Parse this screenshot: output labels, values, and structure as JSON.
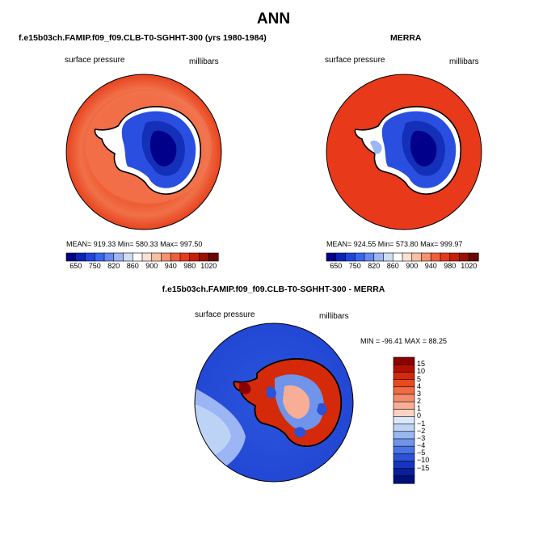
{
  "page": {
    "title": "ANN"
  },
  "panels": {
    "model": {
      "title": "f.e15b03ch.FAMIP.f09_f09.CLB-T0-SGHHT-300 (yrs 1980-1984)",
      "left_label": "surface pressure",
      "right_label": "millibars",
      "stats": "MEAN= 919.33   Min= 580.33   Max= 997.50"
    },
    "obs": {
      "title": "MERRA",
      "left_label": "surface pressure",
      "right_label": "millibars",
      "stats": "MEAN= 924.55   Min= 573.80   Max= 999.97"
    },
    "diff": {
      "title": "f.e15b03ch.FAMIP.f09_f09.CLB-T0-SGHHT-300 - MERRA",
      "left_label": "surface pressure",
      "right_label": "millibars",
      "stats": "MIN = -96.41  MAX =  88.25"
    }
  },
  "chart_data": [
    {
      "type": "heatmap",
      "title": "f.e15b03ch.FAMIP.f09_f09.CLB-T0-SGHHT-300 (yrs 1980-1984)",
      "variable": "surface pressure",
      "units": "millibars",
      "projection": "south polar stereographic",
      "mean": 919.33,
      "min": 580.33,
      "max": 997.5,
      "colorbar_levels": [
        650,
        700,
        750,
        800,
        820,
        840,
        860,
        880,
        900,
        920,
        940,
        960,
        980,
        1000,
        1020
      ],
      "colorbar_tick_labels": [
        "650",
        "750",
        "820",
        "860",
        "900",
        "940",
        "980",
        "1020"
      ],
      "colorbar_colors": [
        "#00008b",
        "#0a24b8",
        "#1f45e0",
        "#3866f0",
        "#6689f2",
        "#9cb5f5",
        "#cfdcfa",
        "#ffffff",
        "#fde0d4",
        "#fbbfa4",
        "#f7916e",
        "#f25e3c",
        "#e8391a",
        "#c81e08",
        "#9a1200",
        "#6a0800"
      ]
    },
    {
      "type": "heatmap",
      "title": "MERRA",
      "variable": "surface pressure",
      "units": "millibars",
      "projection": "south polar stereographic",
      "mean": 924.55,
      "min": 573.8,
      "max": 999.97,
      "colorbar_levels": [
        650,
        700,
        750,
        800,
        820,
        840,
        860,
        880,
        900,
        920,
        940,
        960,
        980,
        1000,
        1020
      ],
      "colorbar_tick_labels": [
        "650",
        "750",
        "820",
        "860",
        "900",
        "940",
        "980",
        "1020"
      ],
      "colorbar_colors": [
        "#00008b",
        "#0a24b8",
        "#1f45e0",
        "#3866f0",
        "#6689f2",
        "#9cb5f5",
        "#cfdcfa",
        "#ffffff",
        "#fde0d4",
        "#fbbfa4",
        "#f7916e",
        "#f25e3c",
        "#e8391a",
        "#c81e08",
        "#9a1200",
        "#6a0800"
      ]
    },
    {
      "type": "heatmap",
      "title": "f.e15b03ch.FAMIP.f09_f09.CLB-T0-SGHHT-300 - MERRA",
      "variable": "surface pressure",
      "units": "millibars",
      "projection": "south polar stereographic",
      "min": -96.41,
      "max": 88.25,
      "colorbar_levels": [
        -15,
        -10,
        -5,
        -4,
        -3,
        -2,
        -1,
        0,
        1,
        2,
        3,
        4,
        5,
        10,
        15
      ],
      "colorbar_tick_labels": [
        "15",
        "10",
        "5",
        "4",
        "3",
        "2",
        "1",
        "0",
        "−1",
        "−2",
        "−3",
        "−4",
        "−5",
        "−10",
        "−15"
      ],
      "colorbar_colors_top_to_bottom": [
        "#8b0000",
        "#b01000",
        "#d42a0a",
        "#e8491f",
        "#f06a45",
        "#f58c6d",
        "#f8ae96",
        "#fbd3c3",
        "#dce8fa",
        "#bcd3f5",
        "#9ab8f0",
        "#6f94ea",
        "#4a73e3",
        "#2b52d8",
        "#1534c0",
        "#071f9c",
        "#00107a"
      ]
    }
  ]
}
